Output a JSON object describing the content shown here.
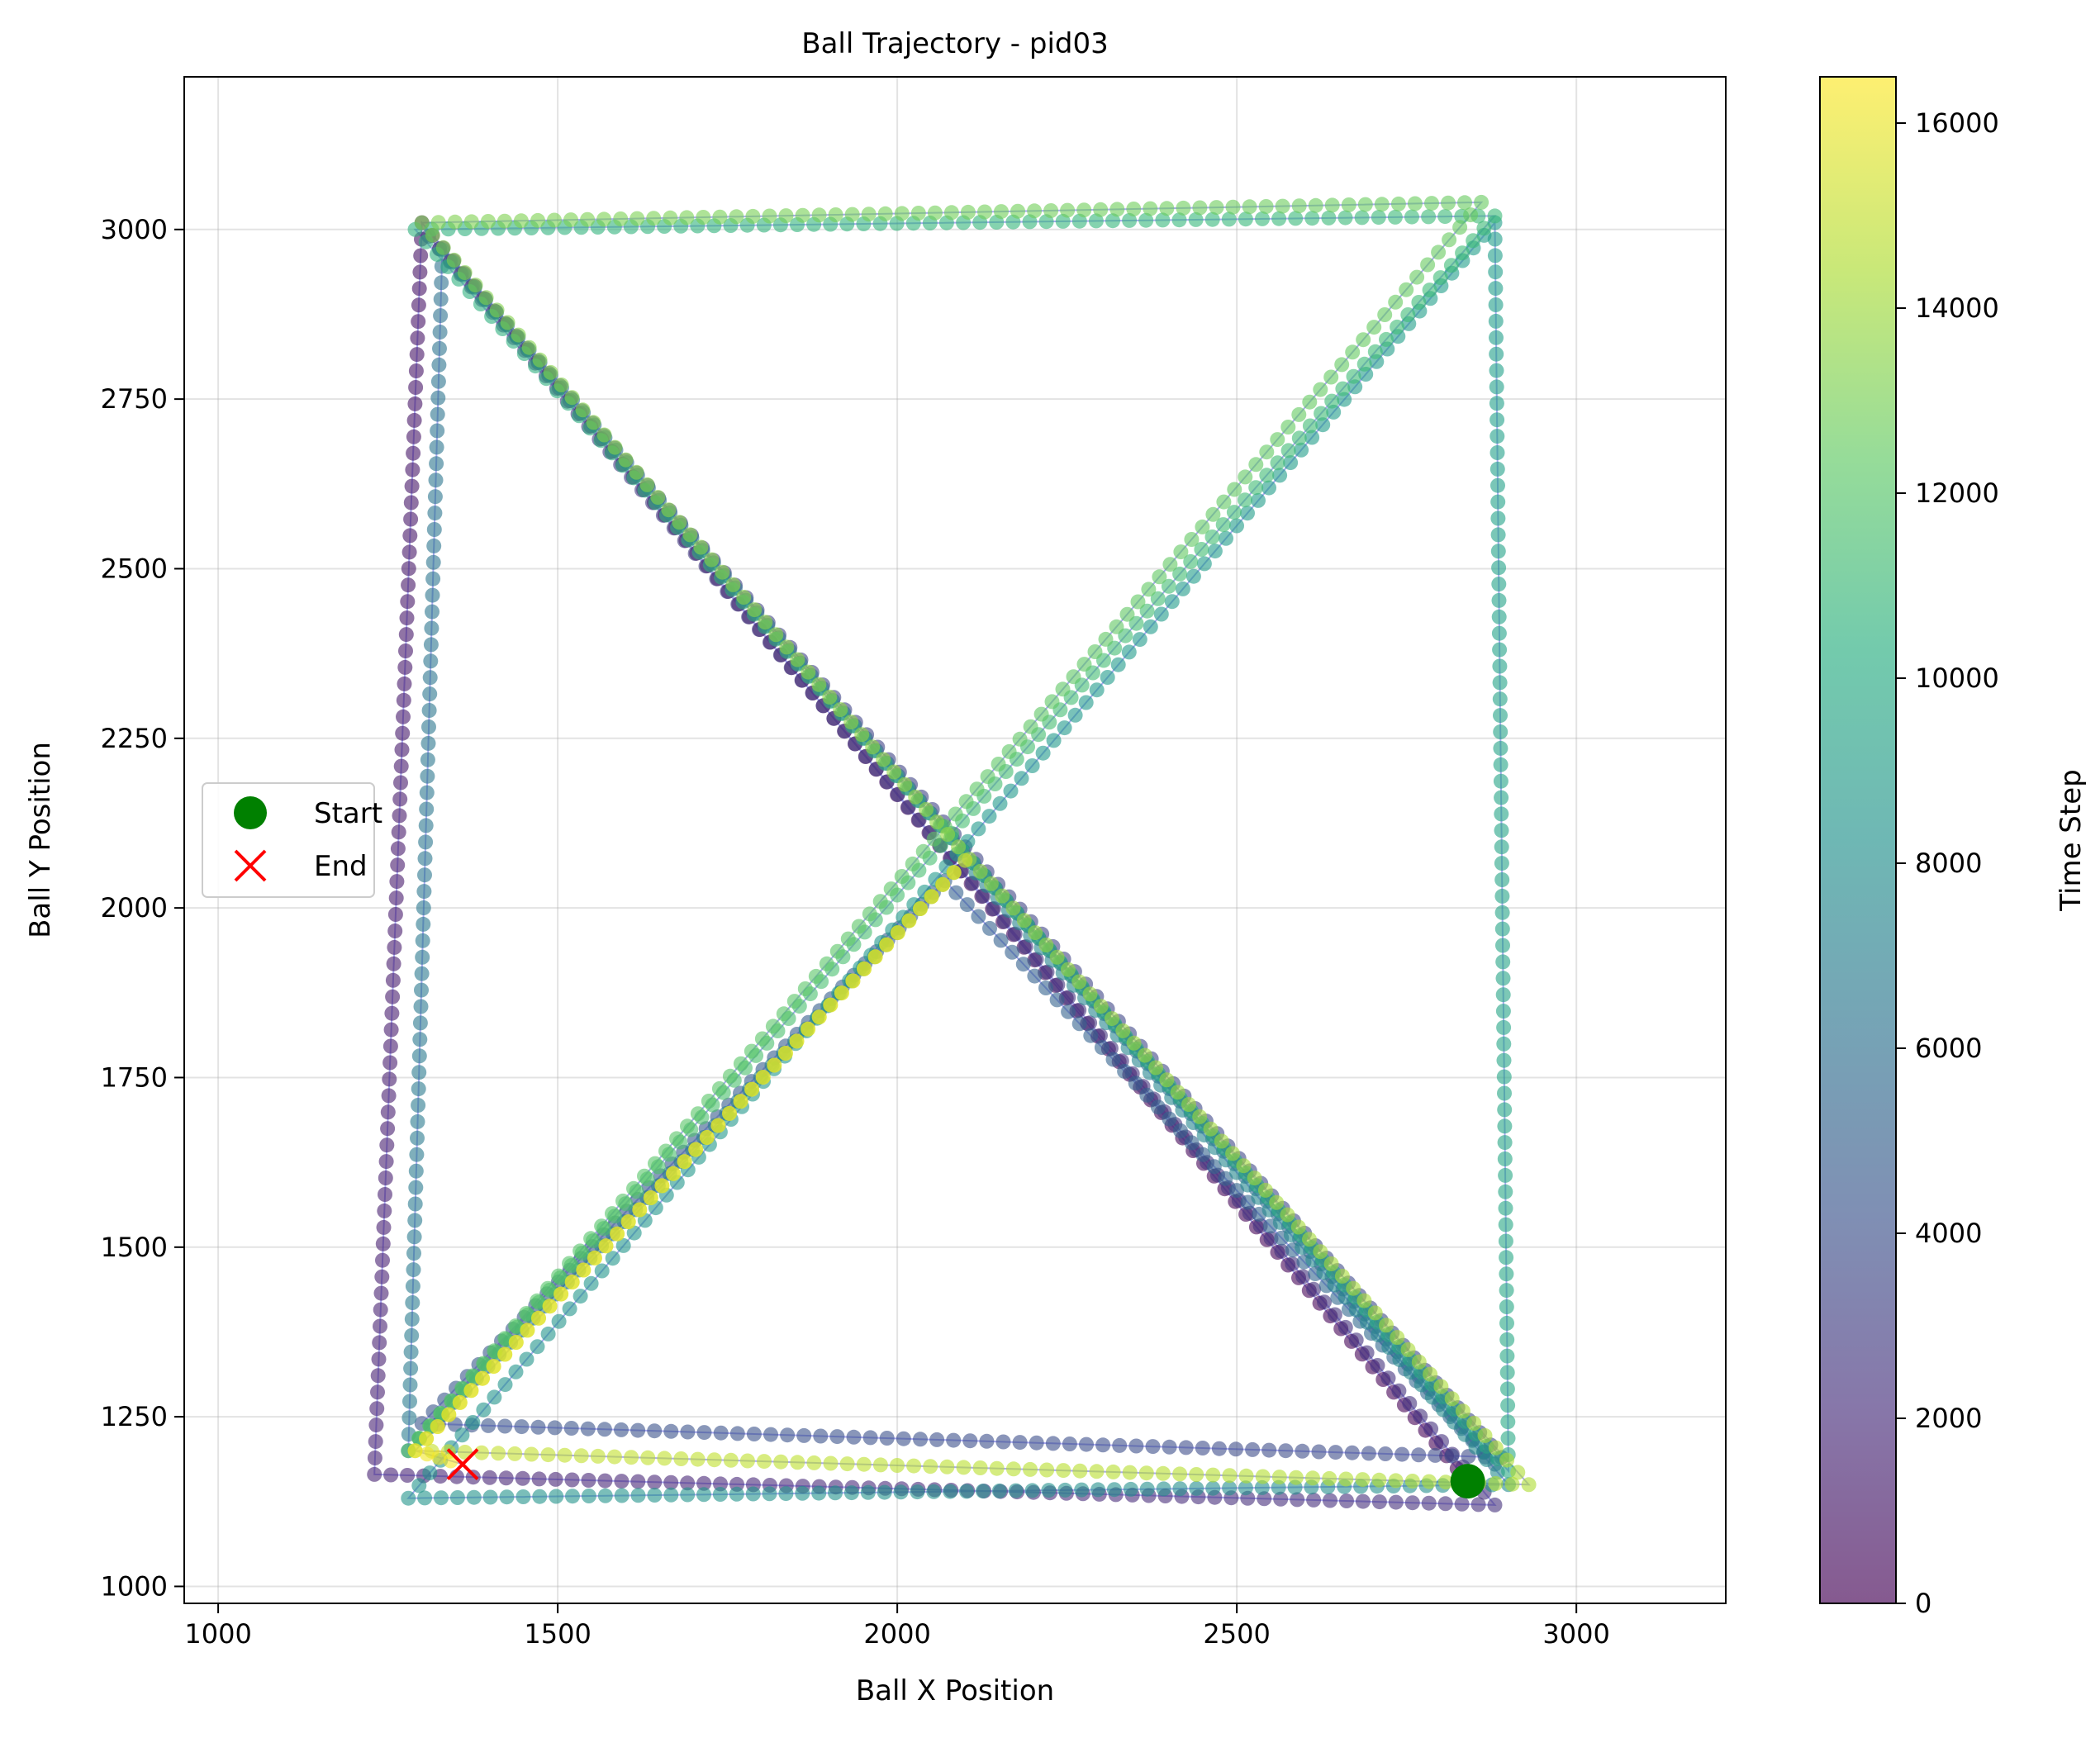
{
  "chart_data": {
    "type": "scatter",
    "title": "Ball Trajectory - pid03",
    "xlabel": "Ball X Position",
    "ylabel": "Ball Y Position",
    "xlim": [
      950,
      3220
    ],
    "ylim": [
      975,
      3225
    ],
    "x_ticks": [
      1000,
      1500,
      2000,
      2500,
      3000
    ],
    "y_ticks": [
      1000,
      1250,
      1500,
      1750,
      2000,
      2250,
      2500,
      2750,
      3000
    ],
    "grid": true,
    "legend_position": "center-left",
    "legend": [
      {
        "label": "Start",
        "marker": "circle",
        "color": "#008000"
      },
      {
        "label": "End",
        "marker": "x",
        "color": "#ff0000"
      }
    ],
    "start_point": {
      "x": 2840,
      "y": 1155
    },
    "end_point": {
      "x": 1360,
      "y": 1180
    },
    "colorbar": {
      "label": "Time Step",
      "range": [
        0,
        16500
      ],
      "ticks": [
        0,
        2000,
        4000,
        6000,
        8000,
        10000,
        12000,
        14000,
        16000
      ],
      "colormap": "viridis"
    },
    "line_color": "#4040e0",
    "waypoints": [
      {
        "x": 2840,
        "y": 1155,
        "t": 0
      },
      {
        "x": 1300,
        "y": 3010,
        "t": 800
      },
      {
        "x": 1230,
        "y": 1165,
        "t": 1600
      },
      {
        "x": 2880,
        "y": 1120,
        "t": 2300
      },
      {
        "x": 1310,
        "y": 2990,
        "t": 3000
      },
      {
        "x": 2890,
        "y": 1190,
        "t": 3700
      },
      {
        "x": 1300,
        "y": 1240,
        "t": 4300
      },
      {
        "x": 2070,
        "y": 2040,
        "t": 5000
      },
      {
        "x": 2880,
        "y": 1180,
        "t": 5600
      },
      {
        "x": 1330,
        "y": 2970,
        "t": 6200
      },
      {
        "x": 1280,
        "y": 1200,
        "t": 6900
      },
      {
        "x": 2100,
        "y": 2070,
        "t": 7400
      },
      {
        "x": 2900,
        "y": 1150,
        "t": 8000
      },
      {
        "x": 1280,
        "y": 1130,
        "t": 8500
      },
      {
        "x": 2880,
        "y": 3010,
        "t": 9200
      },
      {
        "x": 2900,
        "y": 1170,
        "t": 9900
      },
      {
        "x": 1290,
        "y": 3000,
        "t": 10500
      },
      {
        "x": 2880,
        "y": 3020,
        "t": 11200
      },
      {
        "x": 1280,
        "y": 1200,
        "t": 11900
      },
      {
        "x": 2860,
        "y": 3040,
        "t": 12600
      },
      {
        "x": 1300,
        "y": 3010,
        "t": 13300
      },
      {
        "x": 2090,
        "y": 2090,
        "t": 13900
      },
      {
        "x": 2930,
        "y": 1150,
        "t": 14500
      },
      {
        "x": 1290,
        "y": 1200,
        "t": 15100
      },
      {
        "x": 2100,
        "y": 2070,
        "t": 15700
      },
      {
        "x": 1290,
        "y": 1200,
        "t": 16100
      },
      {
        "x": 1360,
        "y": 1180,
        "t": 16500
      }
    ]
  }
}
